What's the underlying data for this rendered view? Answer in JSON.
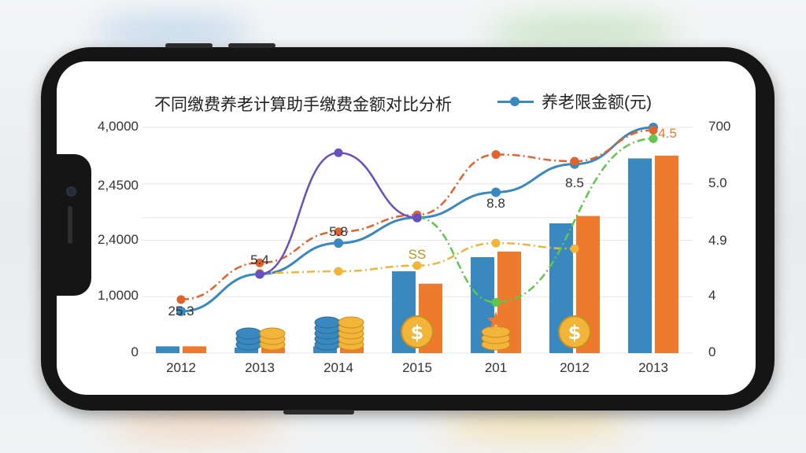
{
  "chart_data": {
    "type": "bar",
    "title": "不同缴费养老计算助手缴费金额对比分析",
    "legend": [
      "养老限金额(元)"
    ],
    "categories": [
      "2012",
      "2013",
      "2014",
      "2015",
      "201",
      "2012",
      "2013"
    ],
    "left_axis_ticks": [
      "0",
      "1,0000",
      "2,4000",
      "2,4500",
      "4,0000"
    ],
    "right_axis_ticks": [
      "0",
      "4",
      "4.9",
      "5.0",
      "700"
    ],
    "ylim": [
      0,
      4
    ],
    "bar_series": [
      {
        "color": "#3a88c0",
        "values": [
          0.12,
          0.1,
          0.12,
          1.45,
          1.7,
          2.3,
          3.45
        ]
      },
      {
        "color": "#ee7a2e",
        "values": [
          0.12,
          0.1,
          0.12,
          1.23,
          1.8,
          2.43,
          3.5
        ]
      }
    ],
    "line_series": [
      {
        "name": "养老限金额(元)",
        "color": "#3a88c0",
        "dashed": false,
        "values": [
          0.74,
          1.4,
          1.95,
          2.4,
          2.85,
          3.35,
          4.0
        ]
      },
      {
        "color": "#e2622e",
        "dashed": true,
        "values": [
          0.95,
          1.6,
          2.15,
          2.45,
          3.52,
          3.4,
          3.95
        ]
      },
      {
        "color": "#f2b53a",
        "dashed": true,
        "values": [
          null,
          1.42,
          1.45,
          1.55,
          1.95,
          1.85,
          null
        ]
      },
      {
        "color": "#5fc84a",
        "dashed": true,
        "values": [
          null,
          null,
          null,
          2.4,
          0.9,
          null,
          3.8
        ]
      },
      {
        "color": "#6a4fc0",
        "dashed": false,
        "values": [
          null,
          1.4,
          3.55,
          2.4,
          null,
          null,
          null
        ]
      }
    ],
    "data_labels": [
      {
        "category_index": 0,
        "text": "25.3"
      },
      {
        "category_index": 1,
        "text": "5.4"
      },
      {
        "category_index": 2,
        "text": "5.8"
      },
      {
        "category_index": 3,
        "text": "SS"
      },
      {
        "category_index": 4,
        "text": "8.8"
      },
      {
        "category_index": 5,
        "text": "8.5"
      },
      {
        "category_index": 6,
        "text": "4.5"
      }
    ],
    "icons": [
      "coin-stack-icon",
      "coin-stack-icon",
      "coin-stack-icon",
      "dollar-coin-icon",
      "star-coin-icon",
      "dollar-coin-icon"
    ]
  }
}
